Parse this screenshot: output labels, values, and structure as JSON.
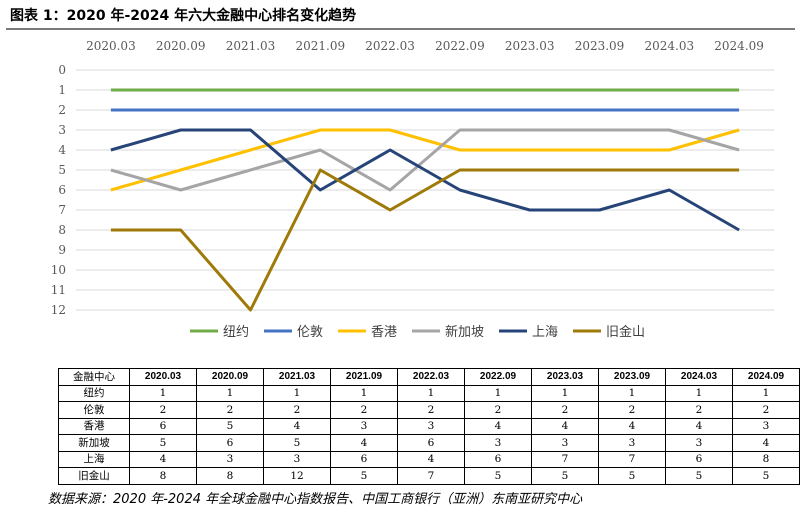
{
  "figure": {
    "title": "图表 1：2020 年-2024 年六大金融中心排名变化趋势",
    "source": "数据来源：2020 年-2024 年全球金融中心指数报告、中国工商银行（亚洲）东南亚研究中心"
  },
  "chart_data": {
    "type": "line",
    "title": "",
    "xlabel": "",
    "ylabel": "",
    "categories": [
      "2020.03",
      "2020.09",
      "2021.03",
      "2021.09",
      "2022.03",
      "2022.09",
      "2023.03",
      "2023.09",
      "2024.03",
      "2024.09"
    ],
    "y_ticks": [
      "0",
      "1",
      "2",
      "3",
      "4",
      "5",
      "6",
      "7",
      "8",
      "9",
      "10",
      "11",
      "12"
    ],
    "ylim": [
      0,
      12
    ],
    "y_reversed": true,
    "grid": true,
    "legend_position": "bottom",
    "series": [
      {
        "name": "纽约",
        "color": "#70ad47",
        "values": [
          1,
          1,
          1,
          1,
          1,
          1,
          1,
          1,
          1,
          1
        ]
      },
      {
        "name": "伦敦",
        "color": "#4472c4",
        "values": [
          2,
          2,
          2,
          2,
          2,
          2,
          2,
          2,
          2,
          2
        ]
      },
      {
        "name": "香港",
        "color": "#ffc000",
        "values": [
          6,
          5,
          4,
          3,
          3,
          4,
          4,
          4,
          4,
          3
        ]
      },
      {
        "name": "新加坡",
        "color": "#a5a5a5",
        "values": [
          5,
          6,
          5,
          4,
          6,
          3,
          3,
          3,
          3,
          4
        ]
      },
      {
        "name": "上海",
        "color": "#264478",
        "values": [
          4,
          3,
          3,
          6,
          4,
          6,
          7,
          7,
          6,
          8
        ]
      },
      {
        "name": "旧金山",
        "color": "#9e7a08",
        "values": [
          8,
          8,
          12,
          5,
          7,
          5,
          5,
          5,
          5,
          5
        ]
      }
    ]
  },
  "table": {
    "corner": "金融中心",
    "columns": [
      "2020.03",
      "2020.09",
      "2021.03",
      "2021.09",
      "2022.03",
      "2022.09",
      "2023.03",
      "2023.09",
      "2024.03",
      "2024.09"
    ],
    "rows": [
      {
        "name": "纽约",
        "values": [
          "1",
          "1",
          "1",
          "1",
          "1",
          "1",
          "1",
          "1",
          "1",
          "1"
        ]
      },
      {
        "name": "伦敦",
        "values": [
          "2",
          "2",
          "2",
          "2",
          "2",
          "2",
          "2",
          "2",
          "2",
          "2"
        ]
      },
      {
        "name": "香港",
        "values": [
          "6",
          "5",
          "4",
          "3",
          "3",
          "4",
          "4",
          "4",
          "4",
          "3"
        ]
      },
      {
        "name": "新加坡",
        "values": [
          "5",
          "6",
          "5",
          "4",
          "6",
          "3",
          "3",
          "3",
          "3",
          "4"
        ]
      },
      {
        "name": "上海",
        "values": [
          "4",
          "3",
          "3",
          "6",
          "4",
          "6",
          "7",
          "7",
          "6",
          "8"
        ]
      },
      {
        "name": "旧金山",
        "values": [
          "8",
          "8",
          "12",
          "5",
          "7",
          "5",
          "5",
          "5",
          "5",
          "5"
        ]
      }
    ]
  }
}
